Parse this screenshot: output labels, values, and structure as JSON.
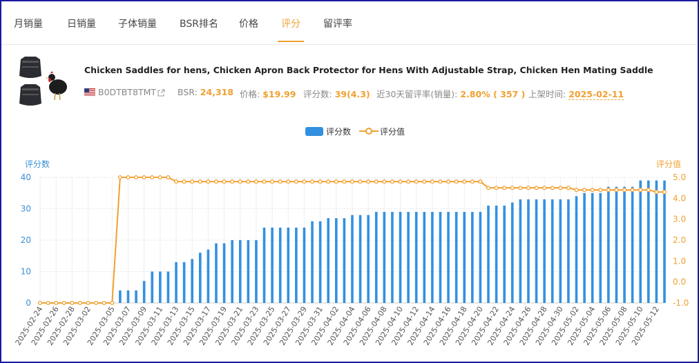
{
  "tabs": [
    {
      "label": "月销量",
      "active": false
    },
    {
      "label": "日销量",
      "active": false
    },
    {
      "label": "子体销量",
      "active": false
    },
    {
      "label": "BSR排名",
      "active": false
    },
    {
      "label": "价格",
      "active": false
    },
    {
      "label": "评分",
      "active": true
    },
    {
      "label": "留评率",
      "active": false
    }
  ],
  "product": {
    "title": "Chicken Saddles for hens, Chicken Apron Back Protector for Hens With Adjustable Strap, Chicken Hen Mating Saddle",
    "asin": "B0DTBT8TMT",
    "bsr_label": "BSR:",
    "bsr_value": "24,318",
    "price_label": "价格:",
    "price_value": "$19.99",
    "rating_label": "评分数:",
    "rating_value": "39(4.3)",
    "review_rate_label": "近30天留评率(销量):",
    "review_rate_value": "2.80% ( 357 )",
    "launch_label": "上架时间:",
    "launch_value": "2025-02-11"
  },
  "colors": {
    "accent": "#f0a030",
    "bar": "#3390e0",
    "axis_blue": "#3a8fd6"
  },
  "chart_data": {
    "type": "bar",
    "legend": [
      "评分数",
      "评分值"
    ],
    "left_axis_title": "评分数",
    "right_axis_title": "评分值",
    "left_ticks": [
      "0",
      "10",
      "20",
      "30",
      "40"
    ],
    "right_ticks": [
      "-1.0",
      "0.0",
      "1.0",
      "2.0",
      "3.0",
      "4.0",
      "5.0"
    ],
    "ylim_left": [
      0,
      40
    ],
    "ylim_right": [
      -1,
      5
    ],
    "x": [
      "2025-02-24",
      "2025-02-25",
      "2025-02-26",
      "2025-02-27",
      "2025-02-28",
      "2025-03-01",
      "2025-03-02",
      "2025-03-03",
      "2025-03-04",
      "2025-03-05",
      "2025-03-06",
      "2025-03-07",
      "2025-03-08",
      "2025-03-09",
      "2025-03-10",
      "2025-03-11",
      "2025-03-12",
      "2025-03-13",
      "2025-03-14",
      "2025-03-15",
      "2025-03-16",
      "2025-03-17",
      "2025-03-18",
      "2025-03-19",
      "2025-03-20",
      "2025-03-21",
      "2025-03-22",
      "2025-03-23",
      "2025-03-24",
      "2025-03-25",
      "2025-03-26",
      "2025-03-27",
      "2025-03-28",
      "2025-03-29",
      "2025-03-30",
      "2025-03-31",
      "2025-04-01",
      "2025-04-02",
      "2025-04-03",
      "2025-04-04",
      "2025-04-05",
      "2025-04-06",
      "2025-04-07",
      "2025-04-08",
      "2025-04-09",
      "2025-04-10",
      "2025-04-11",
      "2025-04-12",
      "2025-04-13",
      "2025-04-14",
      "2025-04-15",
      "2025-04-16",
      "2025-04-17",
      "2025-04-18",
      "2025-04-19",
      "2025-04-20",
      "2025-04-21",
      "2025-04-22",
      "2025-04-23",
      "2025-04-24",
      "2025-04-25",
      "2025-04-26",
      "2025-04-27",
      "2025-04-28",
      "2025-04-29",
      "2025-04-30",
      "2025-05-01",
      "2025-05-02",
      "2025-05-03",
      "2025-05-04",
      "2025-05-05",
      "2025-05-06",
      "2025-05-07",
      "2025-05-08",
      "2025-05-09",
      "2025-05-10",
      "2025-05-11",
      "2025-05-12",
      "2025-05-13"
    ],
    "x_tick_labels": [
      "2025-02-24",
      "2025-02-26",
      "2025-02-28",
      "2025-03-02",
      "2025-03-05",
      "2025-03-07",
      "2025-03-09",
      "2025-03-11",
      "2025-03-13",
      "2025-03-15",
      "2025-03-17",
      "2025-03-19",
      "2025-03-21",
      "2025-03-23",
      "2025-03-25",
      "2025-03-27",
      "2025-03-29",
      "2025-03-31",
      "2025-04-02",
      "2025-04-04",
      "2025-04-06",
      "2025-04-08",
      "2025-04-10",
      "2025-04-12",
      "2025-04-14",
      "2025-04-16",
      "2025-04-18",
      "2025-04-20",
      "2025-04-22",
      "2025-04-24",
      "2025-04-26",
      "2025-04-28",
      "2025-04-30",
      "2025-05-02",
      "2025-05-04",
      "2025-05-06",
      "2025-05-08",
      "2025-05-10",
      "2025-05-12"
    ],
    "series": [
      {
        "name": "评分数",
        "type": "bar",
        "axis": "left",
        "values": [
          0,
          0,
          0,
          0,
          0,
          0,
          0,
          0,
          0,
          0,
          4,
          4,
          4,
          7,
          10,
          10,
          10,
          13,
          13,
          14,
          16,
          17,
          19,
          19,
          20,
          20,
          20,
          20,
          24,
          24,
          24,
          24,
          24,
          24,
          26,
          26,
          27,
          27,
          27,
          28,
          28,
          28,
          29,
          29,
          29,
          29,
          29,
          29,
          29,
          29,
          29,
          29,
          29,
          29,
          29,
          29,
          31,
          31,
          31,
          32,
          33,
          33,
          33,
          33,
          33,
          33,
          33,
          34,
          35,
          35,
          35,
          37,
          37,
          37,
          37,
          39,
          39,
          39,
          39
        ]
      },
      {
        "name": "评分值",
        "type": "line",
        "axis": "right",
        "values": [
          -1,
          -1,
          -1,
          -1,
          -1,
          -1,
          -1,
          -1,
          -1,
          -1,
          5,
          5,
          5,
          5,
          5,
          5,
          5,
          4.8,
          4.8,
          4.8,
          4.8,
          4.8,
          4.8,
          4.8,
          4.8,
          4.8,
          4.8,
          4.8,
          4.8,
          4.8,
          4.8,
          4.8,
          4.8,
          4.8,
          4.8,
          4.8,
          4.8,
          4.8,
          4.8,
          4.8,
          4.8,
          4.8,
          4.8,
          4.8,
          4.8,
          4.8,
          4.8,
          4.8,
          4.8,
          4.8,
          4.8,
          4.8,
          4.8,
          4.8,
          4.8,
          4.8,
          4.5,
          4.5,
          4.5,
          4.5,
          4.5,
          4.5,
          4.5,
          4.5,
          4.5,
          4.5,
          4.5,
          4.4,
          4.4,
          4.4,
          4.4,
          4.4,
          4.4,
          4.4,
          4.4,
          4.4,
          4.4,
          4.3,
          4.3
        ]
      }
    ]
  }
}
